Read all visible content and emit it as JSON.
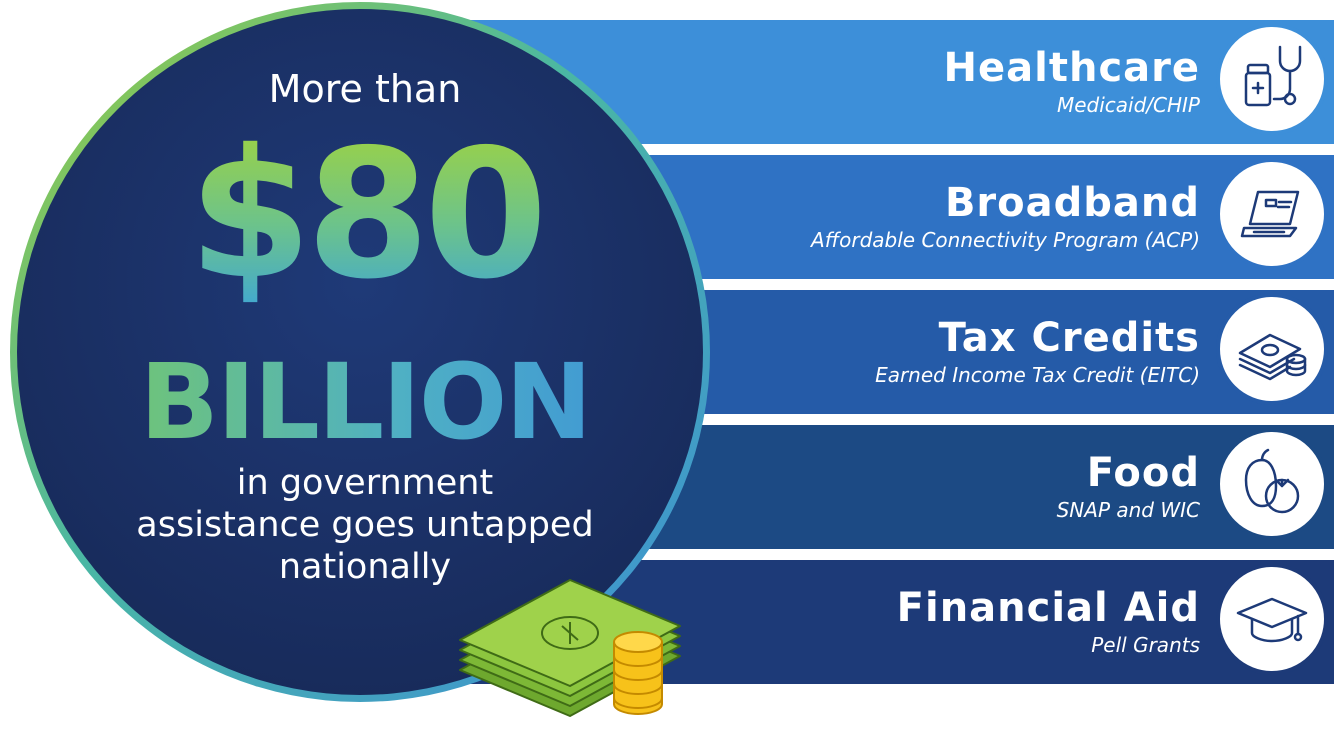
{
  "headline": {
    "lead": "More than",
    "amount": "$80",
    "unit": "BILLION",
    "tagline": [
      "in government",
      "assistance goes untapped",
      "nationally"
    ]
  },
  "categories": [
    {
      "title": "Healthcare",
      "subtitle": "Medicaid/CHIP",
      "icon": "medicine-stethoscope-icon",
      "color": "#3d8fd9"
    },
    {
      "title": "Broadband",
      "subtitle": "Affordable Connectivity Program (ACP)",
      "icon": "laptop-icon",
      "color": "#2f72c4"
    },
    {
      "title": "Tax Credits",
      "subtitle": "Earned Income Tax Credit (EITC)",
      "icon": "money-coins-icon",
      "color": "#255ba8"
    },
    {
      "title": "Food",
      "subtitle": "SNAP and WIC",
      "icon": "vegetables-icon",
      "color": "#1c4a84"
    },
    {
      "title": "Financial Aid",
      "subtitle": "Pell Grants",
      "icon": "graduation-cap-icon",
      "color": "#1d3a78"
    }
  ],
  "decoration": {
    "cash_icon": "cash-stack-icon",
    "coins_icon": "gold-coins-icon",
    "cash_color": "#8cc63f",
    "coin_color": "#f7c21a"
  }
}
